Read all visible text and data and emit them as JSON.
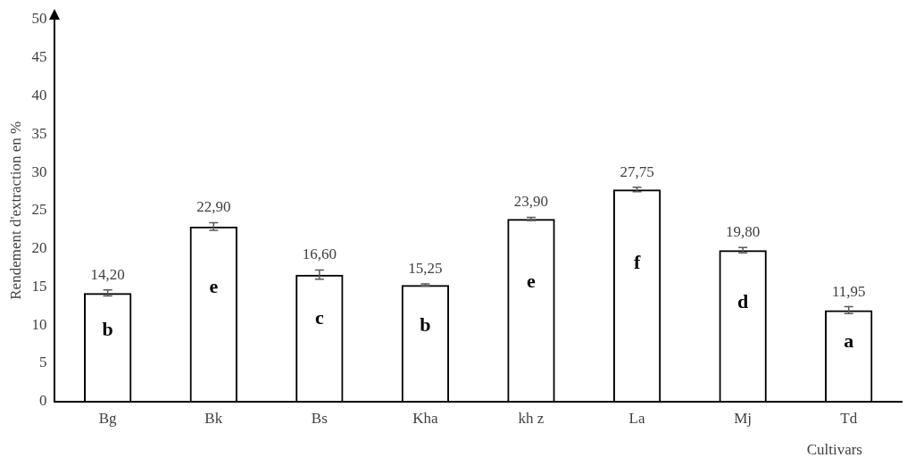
{
  "chart_data": {
    "type": "bar",
    "xlabel": "Cultivars",
    "ylabel": "Rendement d'extraction en %",
    "categories": [
      "Bg",
      "Bk",
      "Bs",
      "Kha",
      "kh z",
      "La",
      "Mj",
      "Td"
    ],
    "values": [
      14.2,
      22.9,
      16.6,
      15.25,
      23.9,
      27.75,
      19.8,
      11.95
    ],
    "errors": [
      0.4,
      0.5,
      0.6,
      0.15,
      0.2,
      0.3,
      0.35,
      0.45
    ],
    "value_labels": [
      "14,20",
      "22,90",
      "16,60",
      "15,25",
      "23,90",
      "27,75",
      "19,80",
      "11,95"
    ],
    "color": "#000000",
    "ylim": [
      0,
      50
    ],
    "yticks": [
      0,
      5,
      10,
      15,
      20,
      25,
      30,
      35,
      40,
      45,
      50
    ],
    "grid": false,
    "legend": false,
    "annotations": [
      "b",
      "e",
      "c",
      "b",
      "e",
      "f",
      "d",
      "a"
    ]
  }
}
